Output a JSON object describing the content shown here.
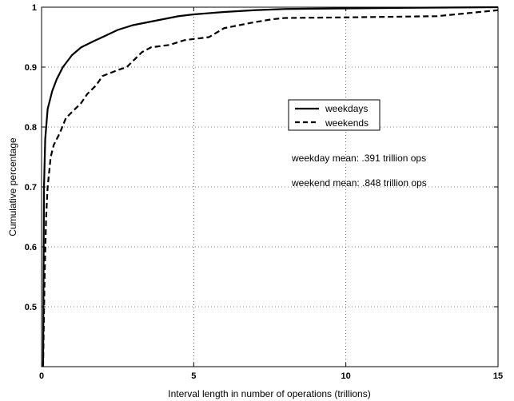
{
  "chart_data": {
    "type": "line",
    "xlabel": "Interval length in number of operations (trillions)",
    "ylabel": "Cumulative percentage",
    "xlim": [
      0,
      15
    ],
    "ylim": [
      0.4,
      1.0
    ],
    "x_ticks": [
      "0",
      "5",
      "10",
      "15"
    ],
    "y_ticks": [
      "0.5",
      "0.6",
      "0.7",
      "0.8",
      "0.9",
      "1"
    ],
    "grid": true,
    "legend_position": "center-right",
    "series": [
      {
        "name": "weekdays",
        "style": "solid",
        "color": "#000000",
        "points": [
          [
            0.05,
            0.4
          ],
          [
            0.08,
            0.7
          ],
          [
            0.12,
            0.78
          ],
          [
            0.2,
            0.83
          ],
          [
            0.35,
            0.86
          ],
          [
            0.5,
            0.88
          ],
          [
            0.7,
            0.9
          ],
          [
            1.0,
            0.92
          ],
          [
            1.3,
            0.933
          ],
          [
            1.7,
            0.943
          ],
          [
            2.0,
            0.95
          ],
          [
            2.5,
            0.962
          ],
          [
            3.0,
            0.97
          ],
          [
            3.5,
            0.975
          ],
          [
            4.0,
            0.98
          ],
          [
            4.5,
            0.985
          ],
          [
            5.0,
            0.988
          ],
          [
            6.0,
            0.992
          ],
          [
            7.0,
            0.995
          ],
          [
            8.0,
            0.997
          ],
          [
            10.0,
            0.998
          ],
          [
            12.0,
            0.999
          ],
          [
            15.0,
            1.0
          ]
        ]
      },
      {
        "name": "weekends",
        "style": "dashed",
        "color": "#000000",
        "points": [
          [
            0.05,
            0.4
          ],
          [
            0.1,
            0.55
          ],
          [
            0.15,
            0.65
          ],
          [
            0.2,
            0.7
          ],
          [
            0.3,
            0.75
          ],
          [
            0.4,
            0.77
          ],
          [
            0.6,
            0.79
          ],
          [
            0.8,
            0.815
          ],
          [
            1.0,
            0.825
          ],
          [
            1.3,
            0.84
          ],
          [
            1.5,
            0.855
          ],
          [
            1.8,
            0.87
          ],
          [
            2.0,
            0.885
          ],
          [
            2.5,
            0.895
          ],
          [
            2.8,
            0.9
          ],
          [
            3.0,
            0.91
          ],
          [
            3.3,
            0.925
          ],
          [
            3.6,
            0.933
          ],
          [
            4.2,
            0.937
          ],
          [
            4.7,
            0.945
          ],
          [
            5.5,
            0.95
          ],
          [
            6.0,
            0.965
          ],
          [
            7.0,
            0.975
          ],
          [
            7.6,
            0.98
          ],
          [
            8.0,
            0.982
          ],
          [
            10.0,
            0.983
          ],
          [
            13.0,
            0.985
          ],
          [
            14.0,
            0.99
          ],
          [
            15.0,
            0.995
          ]
        ]
      }
    ],
    "annotations": [
      "weekday mean: .391 trillion ops",
      "weekend mean: .848 trillion ops"
    ]
  }
}
